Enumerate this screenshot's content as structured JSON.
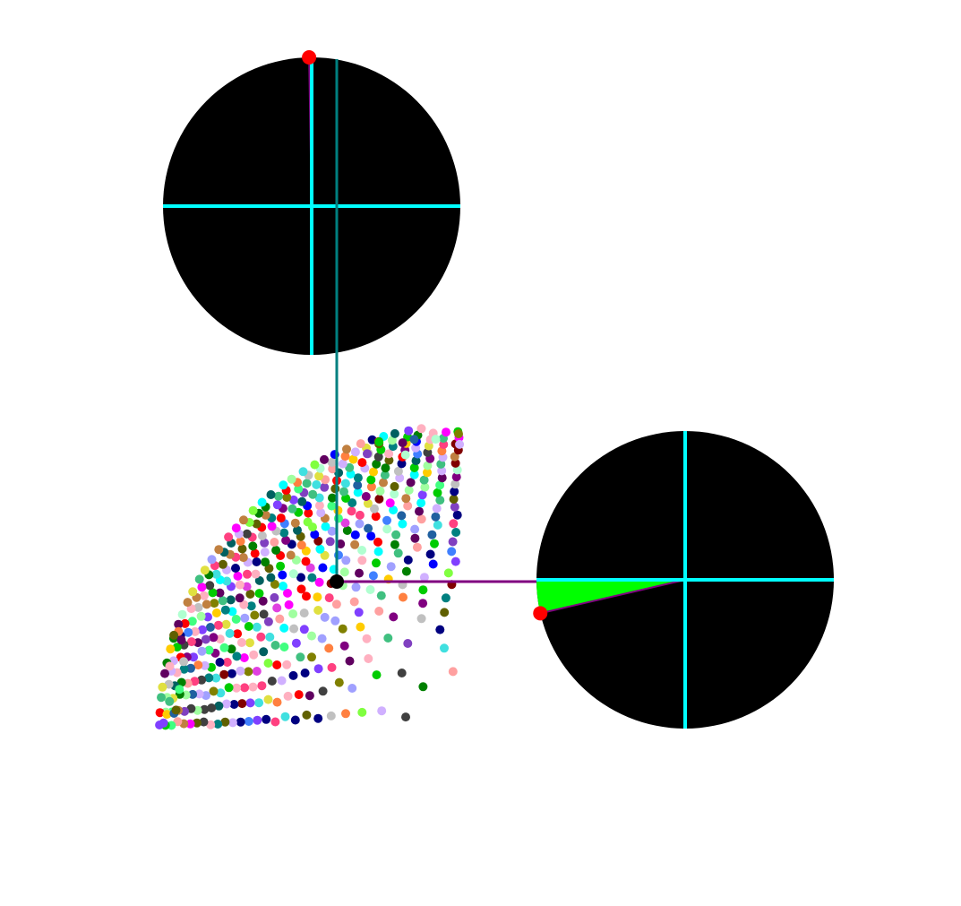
{
  "colors": {
    "background": "#ffffff",
    "disc_fill": "#000000",
    "crosshair": "#00ffff",
    "vertical_link": "#008080",
    "horizontal_link": "#800080",
    "sector_fill": "#00ff00",
    "marker": "#ff0000",
    "center_point": "#000000"
  },
  "dial_top": {
    "marker_angle_deg": 91,
    "sector_fill": "#00ff00"
  },
  "dial_right": {
    "marker_angle_deg": 193,
    "sector_fill": "#00ff00"
  },
  "scatter": {
    "shape": "quarter-annulus of colored dots",
    "dot_palette": [
      "#ff0000",
      "#00cc00",
      "#0000ff",
      "#ff00ff",
      "#00ffff",
      "#ffcc00",
      "#800000",
      "#008000",
      "#000080",
      "#808000",
      "#800080",
      "#008080",
      "#ff8040",
      "#40ff80",
      "#8040ff",
      "#ff4080",
      "#80ff40",
      "#4080ff",
      "#c0c0c0",
      "#404040",
      "#ffb0c0",
      "#b0ffd0",
      "#d0b0ff",
      "#c08040",
      "#40c080",
      "#8040c0",
      "#e0e040",
      "#40e0e0",
      "#e040e0",
      "#606000",
      "#006060",
      "#600060",
      "#a0a0ff",
      "#ffa0a0",
      "#a0ffa0",
      "#2060a0"
    ]
  }
}
